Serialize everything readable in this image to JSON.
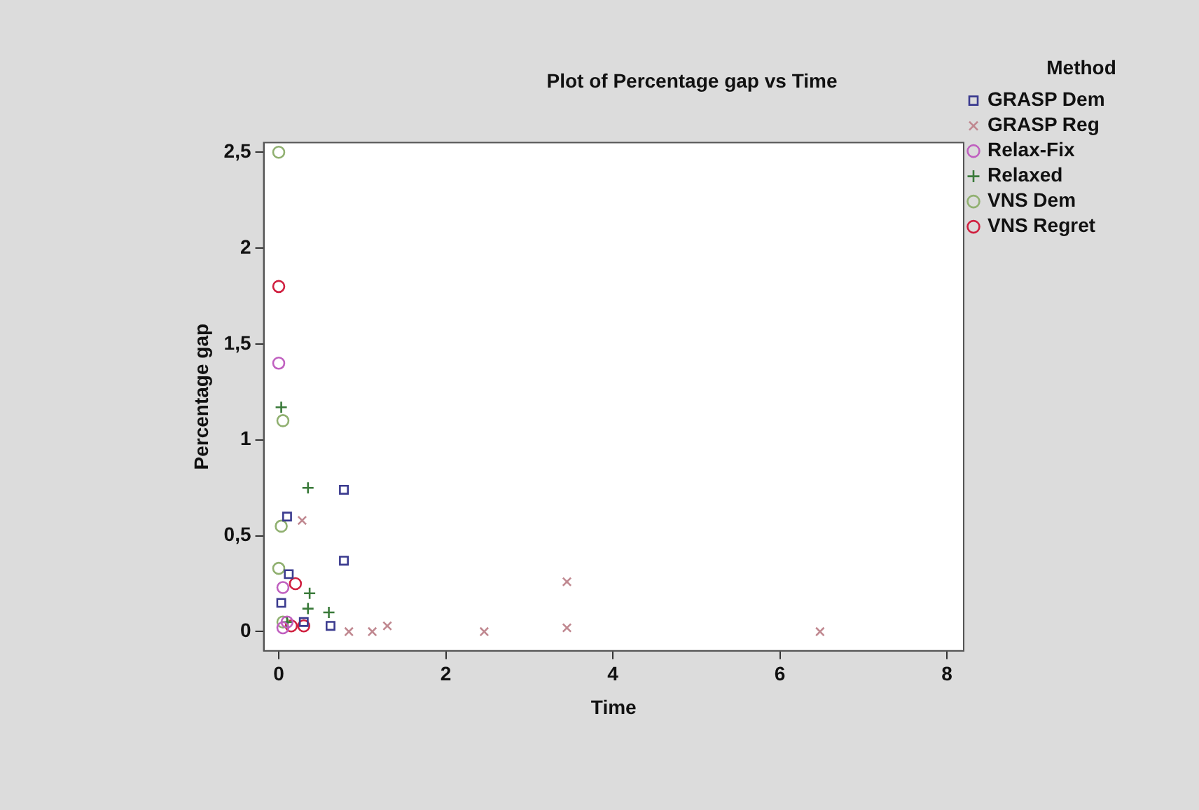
{
  "chart_data": {
    "type": "scatter",
    "title": "Plot of Percentage gap vs Time",
    "xlabel": "Time",
    "ylabel": "Percentage gap",
    "legend_title": "Method",
    "legend": "top right",
    "grid": false,
    "xlim": [
      -0.18,
      8.2
    ],
    "ylim": [
      -0.1,
      2.55
    ],
    "xticks": [
      0,
      2,
      4,
      6,
      8
    ],
    "yticks": [
      0,
      {
        "value": 0.5,
        "label": "0,5"
      },
      1,
      {
        "value": 1.5,
        "label": "1,5"
      },
      2,
      {
        "value": 2.5,
        "label": "2,5"
      }
    ],
    "series": [
      {
        "name": "GRASP Dem",
        "color": "#3b3b8f",
        "marker": "square",
        "x": [
          0.03,
          0.1,
          0.12,
          0.78,
          0.78,
          0.3,
          0.62
        ],
        "values": [
          0.15,
          0.6,
          0.3,
          0.74,
          0.37,
          0.05,
          0.03
        ]
      },
      {
        "name": "GRASP Reg",
        "color": "#c08890",
        "marker": "x",
        "x": [
          0.28,
          0.84,
          1.12,
          1.3,
          2.46,
          3.45,
          3.45,
          6.48
        ],
        "values": [
          0.58,
          0,
          0,
          0.03,
          0,
          0.26,
          0.02,
          0
        ]
      },
      {
        "name": "Relax-Fix",
        "color": "#c060c0",
        "marker": "circle",
        "x": [
          0,
          0.05,
          0.05,
          0.1
        ],
        "values": [
          1.4,
          0.23,
          0.02,
          0.05
        ]
      },
      {
        "name": "Relaxed",
        "color": "#3a7a3a",
        "marker": "cross",
        "x": [
          0.03,
          0.35,
          0.37,
          0.35,
          0.6,
          0.1
        ],
        "values": [
          1.17,
          0.75,
          0.2,
          0.12,
          0.1,
          0.05
        ]
      },
      {
        "name": "VNS Dem",
        "color": "#90b070",
        "marker": "circle",
        "x": [
          0,
          0.05,
          0.03,
          0,
          0.05
        ],
        "values": [
          2.5,
          1.1,
          0.55,
          0.33,
          0.05
        ]
      },
      {
        "name": "VNS Regret",
        "color": "#d02040",
        "marker": "circle",
        "x": [
          0,
          0.2,
          0.15,
          0.3
        ],
        "values": [
          1.8,
          0.25,
          0.03,
          0.03
        ]
      }
    ]
  }
}
